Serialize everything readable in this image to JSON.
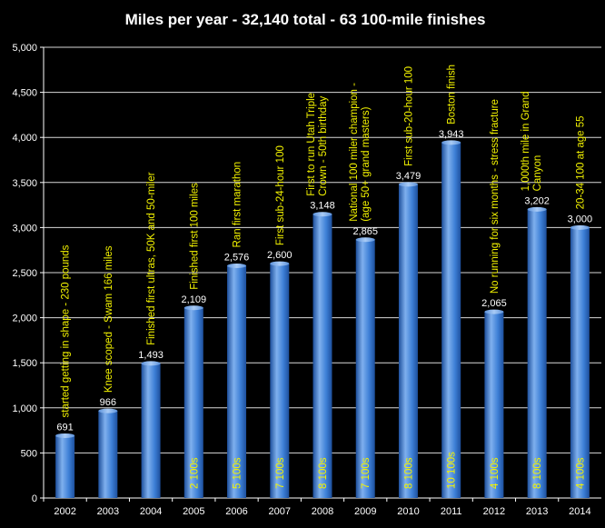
{
  "chart_data": {
    "type": "bar",
    "title": "Miles per year - 32,140 total - 63 100-mile finishes",
    "xlabel": "",
    "ylabel": "",
    "ylim": [
      0,
      5000
    ],
    "yticks": [
      0,
      500,
      1000,
      1500,
      2000,
      2500,
      3000,
      3500,
      4000,
      4500,
      5000
    ],
    "ytick_labels": [
      "0",
      "500",
      "1,000",
      "1,500",
      "2,000",
      "2,500",
      "3,000",
      "3,500",
      "4,000",
      "4,500",
      "5,000"
    ],
    "grid": true,
    "categories": [
      "2002",
      "2003",
      "2004",
      "2005",
      "2006",
      "2007",
      "2008",
      "2009",
      "2010",
      "2011",
      "2012",
      "2013",
      "2014"
    ],
    "values": [
      691,
      966,
      1493,
      2109,
      2576,
      2600,
      3148,
      2865,
      3479,
      3943,
      2065,
      3202,
      3000
    ],
    "value_labels": [
      "691",
      "966",
      "1,493",
      "2,109",
      "2,576",
      "2,600",
      "3,148",
      "2,865",
      "3,479",
      "3,943",
      "2,065",
      "3,202",
      "3,000"
    ],
    "inside_labels": [
      "",
      "",
      "",
      "2 100s",
      "5 100s",
      "7 100s",
      "8 100s",
      "7 100s",
      "8 100s",
      "10 100s",
      "4 100s",
      "8 100s",
      "4 100s"
    ],
    "annotations": [
      [
        "started getting in shape - 230 pounds"
      ],
      [
        "Knee scoped - Swam 166 miles"
      ],
      [
        "Finished first ultras, 50K and 50-miler"
      ],
      [
        "Finished first 100 miles"
      ],
      [
        "Ran first marathon"
      ],
      [
        "First sub-24-hour 100"
      ],
      [
        "First to run Utah Triple",
        "Crown - 50th birthday"
      ],
      [
        "National 100 miler champion -",
        "(age 50+ grand masters)"
      ],
      [
        "First sub-20-hour 100"
      ],
      [
        "Boston finish"
      ],
      [
        "No running for six months - stress fracture"
      ],
      [
        "1,000th mile in Grand",
        "Canyon"
      ],
      [
        "20-34 100 at age 55"
      ]
    ],
    "colors": {
      "background": "#000000",
      "bar_light": "#7fb0ee",
      "bar_mid": "#3d7fd6",
      "bar_dark": "#1d4f9c",
      "annotation": "#f2f200",
      "text": "#ffffff",
      "grid": "#d9d9d9"
    }
  }
}
